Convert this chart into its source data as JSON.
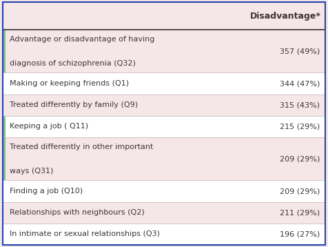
{
  "header_col": "Disadvantage*",
  "rows": [
    {
      "label": "Advantage or disadvantage of having\ndiagnosis of schizophrenia (Q32)",
      "value": "357 (49%)",
      "bg": "#f5e6e8",
      "tall": true
    },
    {
      "label": "Making or keeping friends (Q1)",
      "value": "344 (47%)",
      "bg": "#ffffff",
      "tall": false
    },
    {
      "label": "Treated differently by family (Q9)",
      "value": "315 (43%)",
      "bg": "#f5e6e8",
      "tall": false
    },
    {
      "label": "Keeping a job ( Q11)",
      "value": "215 (29%)",
      "bg": "#ffffff",
      "tall": false
    },
    {
      "label": "Treated differently in other important\nways (Q31)",
      "value": "209 (29%)",
      "bg": "#f5e6e8",
      "tall": true
    },
    {
      "label": "Finding a job (Q10)",
      "value": "209 (29%)",
      "bg": "#ffffff",
      "tall": false
    },
    {
      "label": "Relationships with neighbours (Q2)",
      "value": "211 (29%)",
      "bg": "#f5e6e8",
      "tall": false
    },
    {
      "label": "In intimate or sexual relationships (Q3)",
      "value": "196 (27%)",
      "bg": "#ffffff",
      "tall": false
    }
  ],
  "header_bg": "#f5e6e8",
  "text_color": "#3d3535",
  "border_color": "#2244aa",
  "separator_color": "#333333",
  "row_border_color": "#ccbbbb",
  "fig_bg": "#f5e6e8",
  "left_accent_color": "#88bb88",
  "accent_rows": [
    0,
    3,
    4
  ],
  "font_size": 8.0,
  "header_font_size": 9.0,
  "col_split": 0.7
}
